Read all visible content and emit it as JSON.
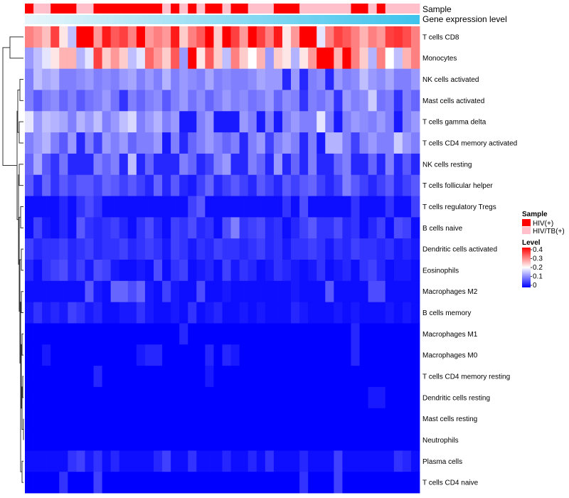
{
  "chart_data": {
    "type": "heatmap",
    "title": "",
    "color_scale": {
      "title": "Level",
      "min": 0,
      "max": 0.4,
      "ticks": [
        "0.4",
        "0.3",
        "0.2",
        "0.1",
        "0"
      ],
      "low_color": "#0000ff",
      "mid_color": "#ffffff",
      "high_color": "#ff0000",
      "mid_value": 0.2
    },
    "annotation_tracks": [
      {
        "label": "Sample",
        "legend_title": "Sample",
        "categories": [
          {
            "name": "HIV(+)",
            "color": "#ff0000"
          },
          {
            "name": "HIV/TB(+)",
            "color": "#ffc0cb"
          }
        ],
        "values": [
          "HIV(+)",
          "HIV/TB(+)",
          "HIV/TB(+)",
          "HIV(+)",
          "HIV(+)",
          "HIV(+)",
          "HIV/TB(+)",
          "HIV/TB(+)",
          "HIV(+)",
          "HIV(+)",
          "HIV(+)",
          "HIV(+)",
          "HIV(+)",
          "HIV(+)",
          "HIV(+)",
          "HIV(+)",
          "HIV/TB(+)",
          "HIV(+)",
          "HIV/TB(+)",
          "HIV(+)",
          "HIV/TB(+)",
          "HIV(+)",
          "HIV(+)",
          "HIV/TB(+)",
          "HIV(+)",
          "HIV(+)",
          "HIV/TB(+)",
          "HIV/TB(+)",
          "HIV/TB(+)",
          "HIV(+)",
          "HIV(+)",
          "HIV(+)",
          "HIV/TB(+)",
          "HIV/TB(+)",
          "HIV/TB(+)",
          "HIV/TB(+)",
          "HIV/TB(+)",
          "HIV/TB(+)",
          "HIV(+)",
          "HIV(+)",
          "HIV/TB(+)",
          "HIV(+)",
          "HIV/TB(+)",
          "HIV/TB(+)",
          "HIV/TB(+)",
          "HIV/TB(+)"
        ]
      },
      {
        "label": "Gene expression level",
        "gradient": [
          "#e8f6fb",
          "#3ec3ec"
        ]
      }
    ],
    "rows": [
      "T cells CD8",
      "Monocytes",
      "NK cells activated",
      "Mast cells activated",
      "T cells gamma delta",
      "T cells CD4 memory activated",
      "NK cells resting",
      "T cells follicular helper",
      "T cells regulatory  Tregs",
      "B cells naive",
      "Dendritic cells activated",
      "Eosinophils",
      "Macrophages M2",
      "B cells memory",
      "Macrophages M1",
      "Macrophages M0",
      "T cells CD4 memory resting",
      "Dendritic cells resting",
      "Mast cells resting",
      "Neutrophils",
      "Plasma cells",
      "T cells CD4 naive"
    ],
    "n_columns": 46,
    "values": [
      [
        0.3,
        0.28,
        0.25,
        0.35,
        0.22,
        0.15,
        0.4,
        0.4,
        0.28,
        0.38,
        0.33,
        0.35,
        0.3,
        0.4,
        0.28,
        0.3,
        0.28,
        0.38,
        0.24,
        0.3,
        0.33,
        0.4,
        0.24,
        0.4,
        0.35,
        0.28,
        0.4,
        0.35,
        0.3,
        0.38,
        0.22,
        0.28,
        0.4,
        0.4,
        0.18,
        0.3,
        0.35,
        0.33,
        0.3,
        0.26,
        0.3,
        0.28,
        0.35,
        0.36,
        0.34,
        0.3
      ],
      [
        0.12,
        0.15,
        0.18,
        0.22,
        0.26,
        0.26,
        0.14,
        0.18,
        0.35,
        0.24,
        0.28,
        0.24,
        0.15,
        0.18,
        0.32,
        0.28,
        0.24,
        0.33,
        0.12,
        0.4,
        0.22,
        0.33,
        0.24,
        0.15,
        0.3,
        0.24,
        0.2,
        0.26,
        0.12,
        0.24,
        0.22,
        0.14,
        0.22,
        0.28,
        0.4,
        0.4,
        0.26,
        0.4,
        0.3,
        0.24,
        0.14,
        0.3,
        0.2,
        0.15,
        0.26,
        0.3
      ],
      [
        0.1,
        0.15,
        0.13,
        0.14,
        0.1,
        0.1,
        0.11,
        0.12,
        0.1,
        0.11,
        0.1,
        0.12,
        0.13,
        0.1,
        0.12,
        0.1,
        0.14,
        0.1,
        0.12,
        0.11,
        0.1,
        0.13,
        0.1,
        0.11,
        0.1,
        0.1,
        0.11,
        0.13,
        0.12,
        0.12,
        0.03,
        0.12,
        0.03,
        0.1,
        0.11,
        0.03,
        0.12,
        0.1,
        0.11,
        0.15,
        0.12,
        0.11,
        0.13,
        0.1,
        0.1,
        0.12
      ],
      [
        0.1,
        0.07,
        0.1,
        0.11,
        0.08,
        0.1,
        0.07,
        0.09,
        0.1,
        0.12,
        0.09,
        0.04,
        0.1,
        0.08,
        0.1,
        0.11,
        0.07,
        0.1,
        0.12,
        0.09,
        0.11,
        0.08,
        0.1,
        0.12,
        0.1,
        0.11,
        0.09,
        0.1,
        0.12,
        0.08,
        0.11,
        0.1,
        0.04,
        0.1,
        0.09,
        0.11,
        0.04,
        0.12,
        0.1,
        0.11,
        0.16,
        0.09,
        0.1,
        0.04,
        0.1,
        0.08
      ],
      [
        0.18,
        0.12,
        0.15,
        0.14,
        0.13,
        0.1,
        0.14,
        0.12,
        0.15,
        0.1,
        0.12,
        0.15,
        0.17,
        0.1,
        0.12,
        0.14,
        0.1,
        0.12,
        0.02,
        0.02,
        0.1,
        0.12,
        0.02,
        0.02,
        0.02,
        0.12,
        0.1,
        0.02,
        0.1,
        0.02,
        0.1,
        0.12,
        0.1,
        0.1,
        0.18,
        0.1,
        0.02,
        0.1,
        0.12,
        0.11,
        0.1,
        0.12,
        0.1,
        0.02,
        0.1,
        0.12
      ],
      [
        0.1,
        0.12,
        0.14,
        0.1,
        0.07,
        0.12,
        0.03,
        0.1,
        0.05,
        0.12,
        0.1,
        0.12,
        0.08,
        0.1,
        0.1,
        0.12,
        0.02,
        0.1,
        0.03,
        0.08,
        0.1,
        0.12,
        0.1,
        0.08,
        0.1,
        0.03,
        0.1,
        0.12,
        0.05,
        0.1,
        0.12,
        0.1,
        0.03,
        0.1,
        0.02,
        0.14,
        0.14,
        0.1,
        0.05,
        0.1,
        0.12,
        0.1,
        0.1,
        0.16,
        0.12,
        0.1
      ],
      [
        0.08,
        0.13,
        0.07,
        0.04,
        0.09,
        0.03,
        0.03,
        0.03,
        0.1,
        0.08,
        0.1,
        0.03,
        0.15,
        0.03,
        0.08,
        0.03,
        0.03,
        0.03,
        0.1,
        0.08,
        0.03,
        0.05,
        0.1,
        0.12,
        0.03,
        0.03,
        0.1,
        0.08,
        0.03,
        0.12,
        0.03,
        0.08,
        0.03,
        0.1,
        0.03,
        0.03,
        0.08,
        0.1,
        0.03,
        0.03,
        0.08,
        0.03,
        0.1,
        0.03,
        0.07,
        0.03
      ],
      [
        0.07,
        0.03,
        0.08,
        0.04,
        0.07,
        0.05,
        0.07,
        0.07,
        0.05,
        0.08,
        0.07,
        0.05,
        0.07,
        0.05,
        0.03,
        0.08,
        0.03,
        0.07,
        0.03,
        0.02,
        0.05,
        0.08,
        0.03,
        0.05,
        0.07,
        0.05,
        0.03,
        0.07,
        0.05,
        0.03,
        0.07,
        0.05,
        0.07,
        0.08,
        0.05,
        0.03,
        0.05,
        0.1,
        0.07,
        0.05,
        0.03,
        0.05,
        0.07,
        0.03,
        0.05,
        0.07
      ],
      [
        0.01,
        0.01,
        0.01,
        0.01,
        0.03,
        0.01,
        0.04,
        0.06,
        0.04,
        0.01,
        0.01,
        0.01,
        0.01,
        0.01,
        0.01,
        0.01,
        0.01,
        0.01,
        0.01,
        0.05,
        0.07,
        0.01,
        0.01,
        0.01,
        0.01,
        0.01,
        0.01,
        0.01,
        0.01,
        0.01,
        0.04,
        0.01,
        0.06,
        0.01,
        0.01,
        0.01,
        0.01,
        0.01,
        0.04,
        0.01,
        0.01,
        0.01,
        0.04,
        0.01,
        0.01,
        0.05
      ],
      [
        0.01,
        0.05,
        0.02,
        0.01,
        0.03,
        0.01,
        0.07,
        0.04,
        0.03,
        0.04,
        0.05,
        0.03,
        0.01,
        0.04,
        0.06,
        0.03,
        0.01,
        0.05,
        0.04,
        0.06,
        0.03,
        0.04,
        0.01,
        0.06,
        0.1,
        0.04,
        0.05,
        0.06,
        0.03,
        0.04,
        0.01,
        0.03,
        0.05,
        0.07,
        0.04,
        0.04,
        0.06,
        0.03,
        0.04,
        0.01,
        0.03,
        0.05,
        0.01,
        0.06,
        0.05,
        0.01
      ],
      [
        0.05,
        0.03,
        0.04,
        0.04,
        0.05,
        0.03,
        0.04,
        0.05,
        0.03,
        0.04,
        0.04,
        0.05,
        0.03,
        0.04,
        0.05,
        0.04,
        0.02,
        0.05,
        0.04,
        0.02,
        0.04,
        0.03,
        0.05,
        0.04,
        0.04,
        0.03,
        0.04,
        0.05,
        0.03,
        0.04,
        0.02,
        0.04,
        0.04,
        0.05,
        0.04,
        0.02,
        0.04,
        0.03,
        0.05,
        0.04,
        0.04,
        0.03,
        0.04,
        0.02,
        0.03,
        0.02
      ],
      [
        0.03,
        0.01,
        0.04,
        0.05,
        0.06,
        0.03,
        0.05,
        0.02,
        0.06,
        0.05,
        0.02,
        0.01,
        0.01,
        0.02,
        0.01,
        0.06,
        0.01,
        0.04,
        0.05,
        0.01,
        0.02,
        0.03,
        0.01,
        0.05,
        0.02,
        0.04,
        0.03,
        0.01,
        0.02,
        0.04,
        0.03,
        0.02,
        0.01,
        0.02,
        0.04,
        0.01,
        0.02,
        0.03,
        0.01,
        0.04,
        0.05,
        0.03,
        0.01,
        0.02,
        0.02,
        0.01
      ],
      [
        0.01,
        0.01,
        0.01,
        0.01,
        0.01,
        0.01,
        0.01,
        0.07,
        0.02,
        0.01,
        0.08,
        0.08,
        0.06,
        0.08,
        0.02,
        0.01,
        0.05,
        0.02,
        0.01,
        0.01,
        0.06,
        0.01,
        0.01,
        0.02,
        0.01,
        0.01,
        0.01,
        0.01,
        0.01,
        0.01,
        0.01,
        0.02,
        0.01,
        0.01,
        0.01,
        0.07,
        0.01,
        0.01,
        0.01,
        0.01,
        0.06,
        0.06,
        0.01,
        0.01,
        0.01,
        0.01
      ],
      [
        0.02,
        0.04,
        0.02,
        0.03,
        0.02,
        0.05,
        0.04,
        0.02,
        0.03,
        0.01,
        0.01,
        0.02,
        0.02,
        0.04,
        0.02,
        0.01,
        0.01,
        0.02,
        0.01,
        0.04,
        0.01,
        0.02,
        0.03,
        0.01,
        0.01,
        0.02,
        0.01,
        0.02,
        0.01,
        0.01,
        0.01,
        0.03,
        0.02,
        0.01,
        0.01,
        0.01,
        0.02,
        0.01,
        0.02,
        0.01,
        0.01,
        0.01,
        0.02,
        0.01,
        0.02,
        0.01
      ],
      [
        0.0,
        0.0,
        0.0,
        0.0,
        0.0,
        0.0,
        0.0,
        0.0,
        0.0,
        0.0,
        0.0,
        0.0,
        0.0,
        0.0,
        0.0,
        0.0,
        0.0,
        0.0,
        0.03,
        0.0,
        0.0,
        0.0,
        0.0,
        0.0,
        0.0,
        0.0,
        0.0,
        0.0,
        0.0,
        0.0,
        0.0,
        0.0,
        0.0,
        0.0,
        0.0,
        0.0,
        0.0,
        0.0,
        0.03,
        0.0,
        0.0,
        0.0,
        0.0,
        0.0,
        0.0,
        0.0
      ],
      [
        0.0,
        0.0,
        0.02,
        0.0,
        0.0,
        0.0,
        0.0,
        0.0,
        0.0,
        0.0,
        0.0,
        0.0,
        0.0,
        0.02,
        0.03,
        0.03,
        0.0,
        0.0,
        0.0,
        0.0,
        0.0,
        0.03,
        0.0,
        0.03,
        0.02,
        0.0,
        0.0,
        0.0,
        0.0,
        0.0,
        0.0,
        0.0,
        0.0,
        0.0,
        0.0,
        0.0,
        0.0,
        0.0,
        0.03,
        0.0,
        0.0,
        0.0,
        0.0,
        0.0,
        0.0,
        0.0
      ],
      [
        0.0,
        0.0,
        0.0,
        0.0,
        0.0,
        0.0,
        0.0,
        0.0,
        0.03,
        0.0,
        0.0,
        0.0,
        0.0,
        0.0,
        0.0,
        0.0,
        0.0,
        0.0,
        0.0,
        0.0,
        0.0,
        0.02,
        0.0,
        0.0,
        0.0,
        0.0,
        0.0,
        0.0,
        0.0,
        0.0,
        0.0,
        0.0,
        0.0,
        0.0,
        0.0,
        0.0,
        0.0,
        0.0,
        0.0,
        0.0,
        0.0,
        0.0,
        0.0,
        0.0,
        0.0,
        0.0
      ],
      [
        0.0,
        0.0,
        0.0,
        0.0,
        0.0,
        0.0,
        0.0,
        0.0,
        0.0,
        0.0,
        0.0,
        0.0,
        0.0,
        0.0,
        0.0,
        0.0,
        0.0,
        0.0,
        0.0,
        0.0,
        0.0,
        0.0,
        0.0,
        0.0,
        0.0,
        0.0,
        0.0,
        0.0,
        0.0,
        0.0,
        0.0,
        0.0,
        0.0,
        0.0,
        0.0,
        0.0,
        0.0,
        0.0,
        0.0,
        0.0,
        0.02,
        0.02,
        0.0,
        0.0,
        0.0,
        0.0
      ],
      [
        0.0,
        0.0,
        0.0,
        0.0,
        0.0,
        0.0,
        0.0,
        0.0,
        0.0,
        0.0,
        0.0,
        0.0,
        0.0,
        0.0,
        0.0,
        0.0,
        0.0,
        0.0,
        0.0,
        0.0,
        0.0,
        0.0,
        0.0,
        0.0,
        0.0,
        0.0,
        0.0,
        0.0,
        0.0,
        0.0,
        0.0,
        0.0,
        0.0,
        0.0,
        0.0,
        0.0,
        0.0,
        0.0,
        0.0,
        0.0,
        0.0,
        0.0,
        0.0,
        0.0,
        0.0,
        0.0
      ],
      [
        0.0,
        0.0,
        0.0,
        0.0,
        0.0,
        0.0,
        0.0,
        0.0,
        0.0,
        0.0,
        0.0,
        0.0,
        0.0,
        0.0,
        0.0,
        0.0,
        0.0,
        0.0,
        0.0,
        0.0,
        0.0,
        0.0,
        0.0,
        0.0,
        0.0,
        0.0,
        0.0,
        0.0,
        0.0,
        0.0,
        0.0,
        0.0,
        0.0,
        0.0,
        0.0,
        0.0,
        0.0,
        0.0,
        0.0,
        0.0,
        0.0,
        0.0,
        0.0,
        0.0,
        0.0,
        0.0
      ],
      [
        0.01,
        0.01,
        0.01,
        0.01,
        0.01,
        0.04,
        0.05,
        0.02,
        0.04,
        0.01,
        0.03,
        0.01,
        0.01,
        0.01,
        0.01,
        0.03,
        0.05,
        0.01,
        0.01,
        0.04,
        0.01,
        0.01,
        0.01,
        0.03,
        0.01,
        0.01,
        0.03,
        0.01,
        0.04,
        0.01,
        0.01,
        0.01,
        0.03,
        0.01,
        0.01,
        0.01,
        0.05,
        0.01,
        0.01,
        0.01,
        0.01,
        0.01,
        0.01,
        0.04,
        0.03,
        0.01
      ],
      [
        0.0,
        0.0,
        0.0,
        0.0,
        0.04,
        0.0,
        0.0,
        0.0,
        0.05,
        0.0,
        0.0,
        0.0,
        0.0,
        0.0,
        0.0,
        0.0,
        0.0,
        0.0,
        0.0,
        0.0,
        0.0,
        0.0,
        0.0,
        0.0,
        0.0,
        0.0,
        0.0,
        0.0,
        0.0,
        0.0,
        0.0,
        0.0,
        0.04,
        0.0,
        0.0,
        0.0,
        0.05,
        0.0,
        0.0,
        0.0,
        0.0,
        0.0,
        0.0,
        0.0,
        0.0,
        0.0
      ]
    ],
    "row_dendrogram": true,
    "column_dendrogram": false
  }
}
